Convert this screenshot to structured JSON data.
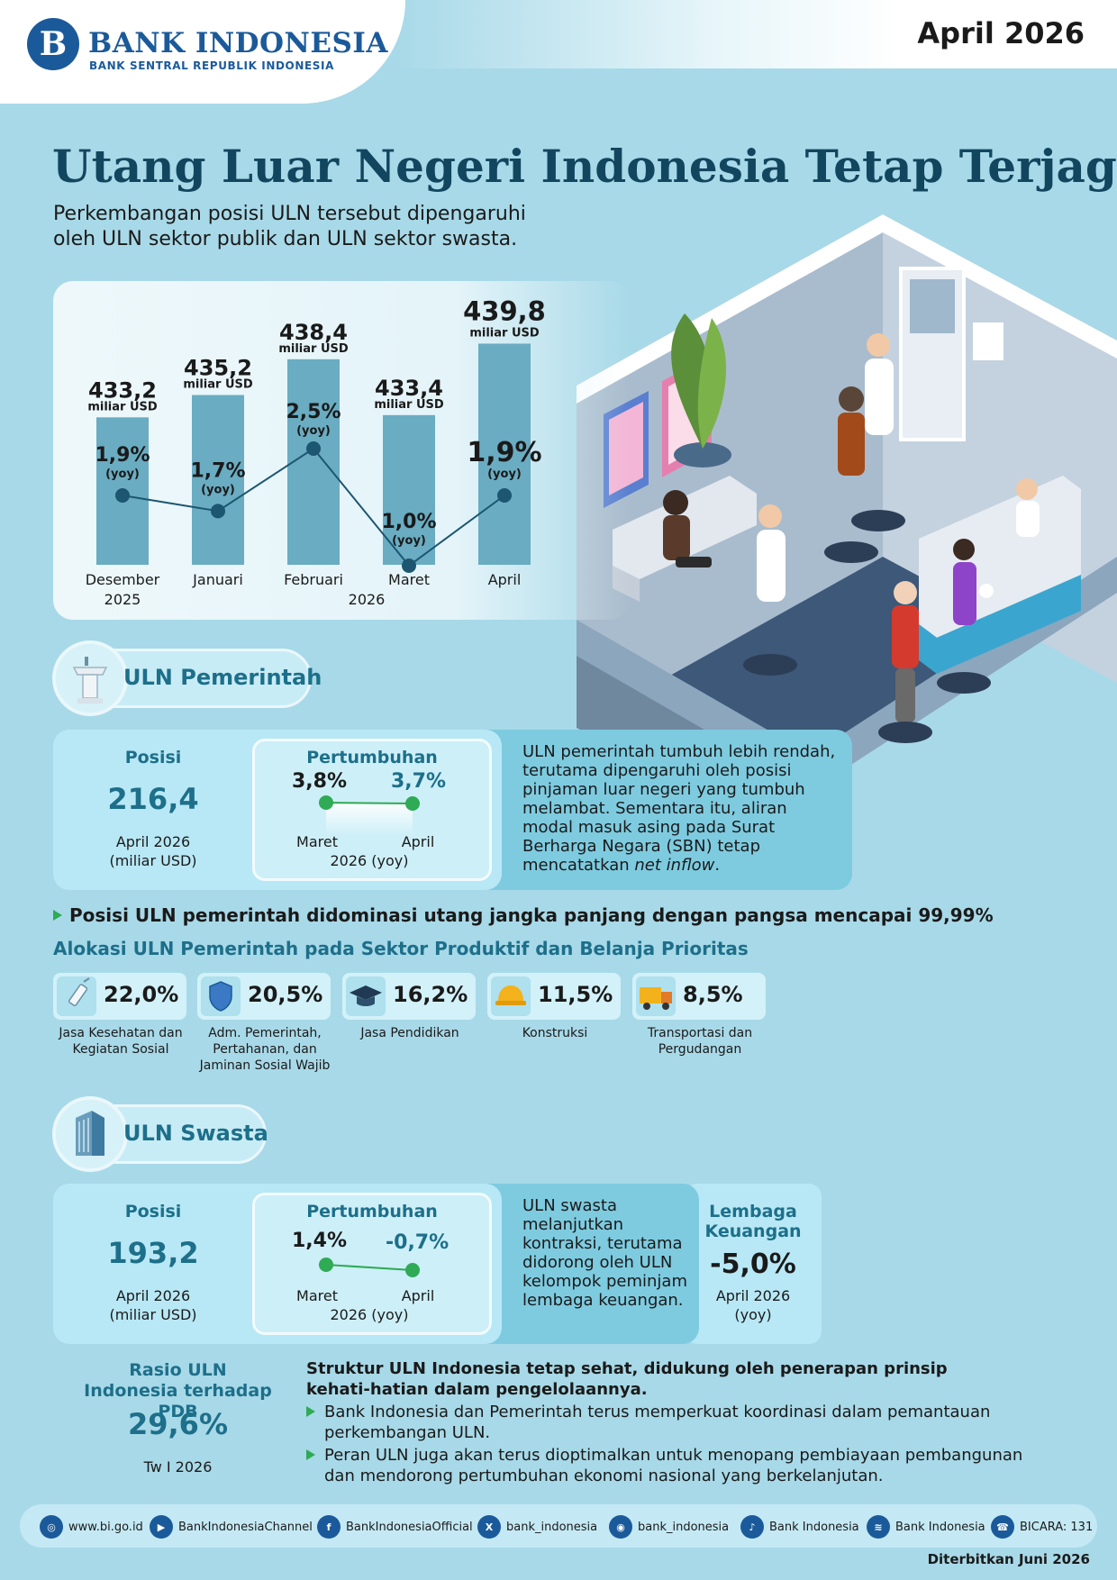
{
  "header": {
    "bank_name": "BANK INDONESIA",
    "bank_subtitle": "BANK SENTRAL REPUBLIK INDONESIA",
    "date": "April 2026"
  },
  "title": "Utang Luar Negeri Indonesia Tetap Terjaga",
  "subtitle": "Perkembangan posisi ULN tersebut dipengaruhi oleh ULN sektor publik dan ULN sektor swasta.",
  "chart_data": {
    "type": "bar",
    "categories": [
      "Desember",
      "Januari",
      "Februari",
      "Maret",
      "April"
    ],
    "year_labels": [
      "2025",
      "2026"
    ],
    "series": [
      {
        "values": [
          433.2,
          435.2,
          438.4,
          433.4,
          439.8
        ],
        "labels": [
          "433,2",
          "435,2",
          "438,4",
          "433,4",
          "439,8"
        ],
        "unit": "miliar USD"
      },
      {
        "values": [
          1.9,
          1.7,
          2.5,
          1.0,
          1.9
        ],
        "labels": [
          "1,9%",
          "1,7%",
          "2,5%",
          "1,0%",
          "1,9%"
        ],
        "unit": "(yoy)",
        "type": "line"
      }
    ],
    "colors": {
      "bar": "#6aacc2",
      "line": "#1c5670"
    }
  },
  "uln_pemerintah": {
    "label": "ULN Pemerintah",
    "posisi_label": "Posisi",
    "posisi_value": "216,4",
    "posisi_period": "April 2026",
    "posisi_unit": "(miliar USD)",
    "pertumbuhan_label": "Pertumbuhan",
    "growth_start": "3,8%",
    "growth_end": "3,7%",
    "growth_start_month": "Maret",
    "growth_end_month": "April",
    "growth_period": "2026 (yoy)",
    "description": "ULN pemerintah tumbuh lebih rendah, terutama dipengaruhi oleh posisi pinjaman luar negeri yang tumbuh melambat. Sementara itu, aliran modal masuk asing pada Surat Berharga Negara (SBN) tetap mencatatkan",
    "description_italic": "net inflow",
    "description_end": "."
  },
  "dominance_note": "Posisi ULN pemerintah didominasi utang jangka panjang dengan pangsa mencapai 99,99%",
  "allocation": {
    "title": "Alokasi ULN Pemerintah pada Sektor Produktif dan Belanja Prioritas",
    "items": [
      {
        "value": "22,0%",
        "label": "Jasa Kesehatan dan Kegiatan Sosial",
        "icon": "syringe-icon"
      },
      {
        "value": "20,5%",
        "label": "Adm. Pemerintah, Pertahanan, dan Jaminan Sosial Wajib",
        "icon": "shield-icon"
      },
      {
        "value": "16,2%",
        "label": "Jasa Pendidikan",
        "icon": "graduation-cap-icon"
      },
      {
        "value": "11,5%",
        "label": "Konstruksi",
        "icon": "hard-hat-icon"
      },
      {
        "value": "8,5%",
        "label": "Transportasi dan Pergudangan",
        "icon": "truck-icon"
      }
    ]
  },
  "uln_swasta": {
    "label": "ULN Swasta",
    "posisi_label": "Posisi",
    "posisi_value": "193,2",
    "posisi_period": "April 2026",
    "posisi_unit": "(miliar USD)",
    "pertumbuhan_label": "Pertumbuhan",
    "growth_start": "1,4%",
    "growth_end": "-0,7%",
    "growth_start_month": "Maret",
    "growth_end_month": "April",
    "growth_period": "2026 (yoy)",
    "description": "ULN swasta melanjutkan kontraksi, terutama didorong oleh ULN kelompok peminjam lembaga keuangan.",
    "lembaga_label": "Lembaga Keuangan",
    "lembaga_value": "-5,0%",
    "lembaga_period": "April 2026 (yoy)"
  },
  "rasio": {
    "label": "Rasio ULN Indonesia terhadap PDB",
    "value": "29,6%",
    "period": "Tw I 2026"
  },
  "structure": {
    "heading": "Struktur ULN Indonesia tetap sehat, didukung oleh penerapan prinsip kehati-hatian dalam pengelolaannya.",
    "bullets": [
      "Bank Indonesia dan Pemerintah terus memperkuat koordinasi dalam pemantauan perkembangan ULN.",
      "Peran ULN juga akan terus dioptimalkan untuk menopang pembiayaan pembangunan dan mendorong pertumbuhan ekonomi nasional yang berkelanjutan."
    ]
  },
  "footer": {
    "items": [
      {
        "text": "www.bi.go.id",
        "icon": "globe-icon"
      },
      {
        "text": "BankIndonesiaChannel",
        "icon": "youtube-icon"
      },
      {
        "text": "BankIndonesiaOfficial",
        "icon": "facebook-icon"
      },
      {
        "text": "bank_indonesia",
        "icon": "x-icon"
      },
      {
        "text": "bank_indonesia",
        "icon": "instagram-icon"
      },
      {
        "text": "Bank Indonesia",
        "icon": "tiktok-icon"
      },
      {
        "text": "Bank Indonesia",
        "icon": "spotify-icon"
      },
      {
        "text": "BICARA: 131",
        "icon": "call-center-icon"
      }
    ],
    "published": "Diterbitkan Juni 2026"
  }
}
